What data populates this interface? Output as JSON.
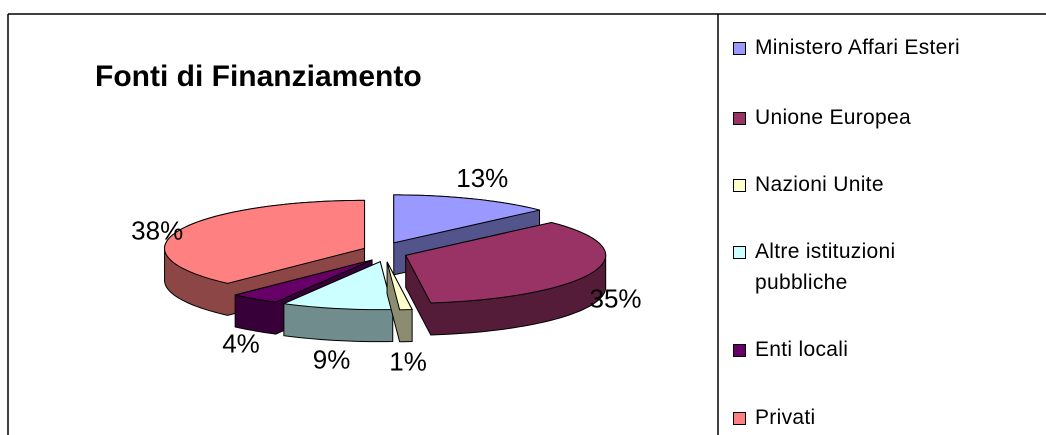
{
  "chart_data": {
    "type": "pie3d",
    "title": "Fonti di Finanziamento",
    "categories": [
      "Ministero Affari Esteri",
      "Unione Europea",
      "Nazioni Unite",
      "Altre istituzioni pubbliche",
      "Enti locali",
      "Privati"
    ],
    "values": [
      13,
      35,
      1,
      9,
      4,
      38
    ],
    "value_labels": [
      "13%",
      "35%",
      "1%",
      "9%",
      "4%",
      "38%"
    ],
    "colors": [
      "#9999ff",
      "#993366",
      "#ffffcc",
      "#ccffff",
      "#660066",
      "#ff8080"
    ],
    "legend": "right"
  }
}
